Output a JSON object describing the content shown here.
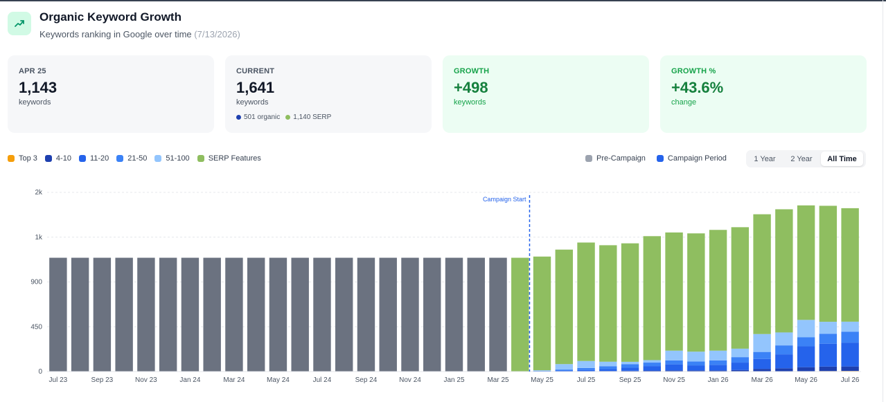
{
  "header": {
    "icon": "trending-up-icon",
    "title": "Organic Keyword Growth",
    "subtitle": "Keywords ranking in Google over time",
    "date": "(7/13/2026)"
  },
  "cards": [
    {
      "label": "APR 25",
      "value": "1,143",
      "unit": "keywords"
    },
    {
      "label": "CURRENT",
      "value": "1,641",
      "unit": "keywords",
      "organic": "501 organic",
      "serp": "1,140 SERP"
    },
    {
      "label": "GROWTH",
      "value": "+498",
      "unit": "keywords"
    },
    {
      "label": "GROWTH %",
      "value": "+43.6%",
      "unit": "change"
    }
  ],
  "legend": {
    "items": [
      {
        "label": "Top 3",
        "color": "#f59e0b"
      },
      {
        "label": "4-10",
        "color": "#1e40af"
      },
      {
        "label": "11-20",
        "color": "#2563eb"
      },
      {
        "label": "21-50",
        "color": "#3b82f6"
      },
      {
        "label": "51-100",
        "color": "#93c5fd"
      },
      {
        "label": "SERP Features",
        "color": "#8fbe60"
      }
    ],
    "periods": [
      {
        "label": "Pre-Campaign",
        "color": "#9ca3af"
      },
      {
        "label": "Campaign Period",
        "color": "#2563eb"
      }
    ]
  },
  "range_buttons": [
    {
      "label": "1 Year",
      "active": false
    },
    {
      "label": "2 Year",
      "active": false
    },
    {
      "label": "All Time",
      "active": true
    }
  ],
  "chart_data": {
    "type": "bar",
    "stacked": true,
    "categories": [
      "Jul 23",
      "Aug 23",
      "Sep 23",
      "Oct 23",
      "Nov 23",
      "Dec 23",
      "Jan 24",
      "Feb 24",
      "Mar 24",
      "Apr 24",
      "May 24",
      "Jun 24",
      "Jul 24",
      "Aug 24",
      "Sep 24",
      "Oct 24",
      "Nov 24",
      "Dec 24",
      "Jan 25",
      "Feb 25",
      "Mar 25",
      "Apr 25",
      "May 25",
      "Jun 25",
      "Jul 25",
      "Aug 25",
      "Sep 25",
      "Oct 25",
      "Nov 25",
      "Dec 25",
      "Jan 26",
      "Feb 26",
      "Mar 26",
      "Apr 26",
      "May 26",
      "Jun 26",
      "Jul 26"
    ],
    "x_tick_labels": [
      "Jul 23",
      "Sep 23",
      "Nov 23",
      "Jan 24",
      "Mar 24",
      "May 24",
      "Jul 24",
      "Sep 24",
      "Nov 24",
      "Jan 25",
      "Mar 25",
      "May 25",
      "Jul 25",
      "Sep 25",
      "Nov 25",
      "Jan 26",
      "Mar 26",
      "May 26",
      "Jul 26"
    ],
    "y_ticks": [
      0,
      450,
      900,
      1350,
      1800
    ],
    "y_tick_labels": [
      "0",
      "450",
      "900",
      "1k",
      "2k"
    ],
    "ylim": [
      0,
      1800
    ],
    "campaign_start_label": "Campaign Start",
    "campaign_start_category": "Apr 25",
    "series": [
      {
        "name": "Pre-Campaign",
        "color": "#6b7280",
        "values": [
          1143,
          1143,
          1143,
          1143,
          1143,
          1143,
          1143,
          1143,
          1143,
          1143,
          1143,
          1143,
          1143,
          1143,
          1143,
          1143,
          1143,
          1143,
          1143,
          1143,
          1143,
          0,
          0,
          0,
          0,
          0,
          0,
          0,
          0,
          0,
          0,
          0,
          0,
          0,
          0,
          0,
          0
        ]
      },
      {
        "name": "Top 3",
        "color": "#f59e0b",
        "values": [
          0,
          0,
          0,
          0,
          0,
          0,
          0,
          0,
          0,
          0,
          0,
          0,
          0,
          0,
          0,
          0,
          0,
          0,
          0,
          0,
          0,
          0,
          0,
          0,
          0,
          0,
          0,
          0,
          0,
          0,
          0,
          0,
          2,
          3,
          4,
          5,
          6
        ]
      },
      {
        "name": "4-10",
        "color": "#1e40af",
        "values": [
          0,
          0,
          0,
          0,
          0,
          0,
          0,
          0,
          0,
          0,
          0,
          0,
          0,
          0,
          0,
          0,
          0,
          0,
          0,
          0,
          0,
          0,
          0,
          2,
          4,
          6,
          8,
          10,
          12,
          12,
          12,
          15,
          25,
          30,
          40,
          45,
          45
        ]
      },
      {
        "name": "11-20",
        "color": "#2563eb",
        "values": [
          0,
          0,
          0,
          0,
          0,
          0,
          0,
          0,
          0,
          0,
          0,
          0,
          0,
          0,
          0,
          0,
          0,
          0,
          0,
          0,
          0,
          0,
          3,
          8,
          12,
          18,
          30,
          45,
          60,
          50,
          55,
          75,
          100,
          140,
          210,
          230,
          240
        ]
      },
      {
        "name": "21-50",
        "color": "#3b82f6",
        "values": [
          0,
          0,
          0,
          0,
          0,
          0,
          0,
          0,
          0,
          0,
          0,
          0,
          0,
          0,
          0,
          0,
          0,
          0,
          0,
          0,
          0,
          0,
          5,
          10,
          20,
          30,
          35,
          35,
          40,
          40,
          45,
          55,
          70,
          90,
          90,
          100,
          110
        ]
      },
      {
        "name": "51-100",
        "color": "#93c5fd",
        "values": [
          0,
          0,
          0,
          0,
          0,
          0,
          0,
          0,
          0,
          0,
          0,
          0,
          0,
          0,
          0,
          0,
          0,
          0,
          0,
          0,
          0,
          0,
          5,
          55,
          70,
          45,
          25,
          25,
          98,
          98,
          98,
          85,
          180,
          130,
          175,
          120,
          100
        ]
      },
      {
        "name": "SERP Features",
        "color": "#8fbe60",
        "values": [
          0,
          0,
          0,
          0,
          0,
          0,
          0,
          0,
          0,
          0,
          0,
          0,
          0,
          0,
          0,
          0,
          0,
          0,
          0,
          0,
          0,
          1143,
          1142,
          1150,
          1190,
          1170,
          1190,
          1245,
          1187,
          1188,
          1213,
          1220,
          1203,
          1237,
          1150,
          1165,
          1140
        ]
      }
    ]
  }
}
